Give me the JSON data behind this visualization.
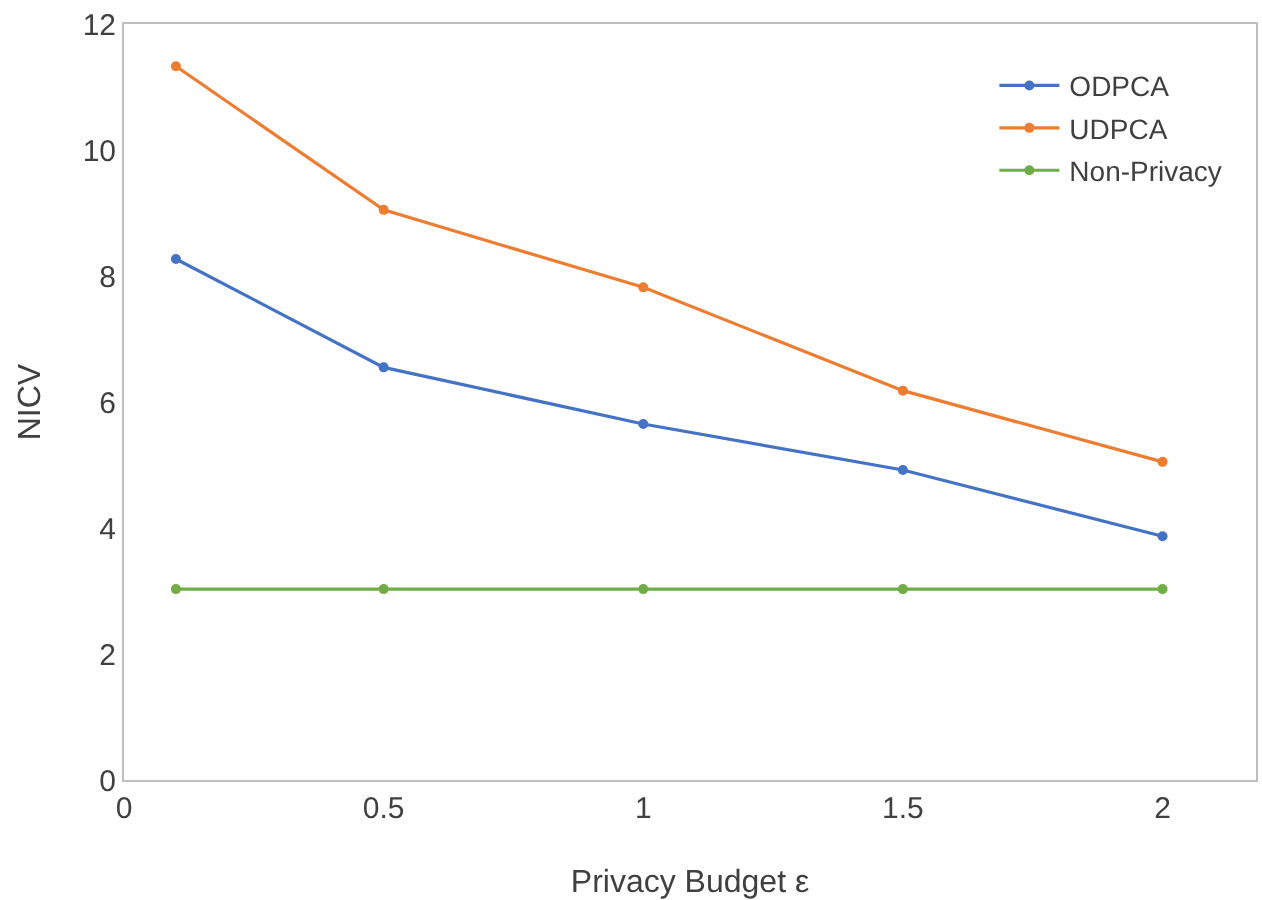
{
  "chart_data": {
    "type": "line",
    "xlabel": "Privacy Budget ε",
    "ylabel": "NICV",
    "x": [
      0.1,
      0.5,
      1,
      1.5,
      2
    ],
    "series": [
      {
        "name": "ODPCA",
        "color": "#4472c4",
        "values": [
          8.27,
          6.55,
          5.65,
          4.92,
          3.87
        ]
      },
      {
        "name": "UDPCA",
        "color": "#ed7d31",
        "values": [
          11.33,
          9.05,
          7.82,
          6.18,
          5.05
        ]
      },
      {
        "name": "Non-Privacy",
        "color": "#70ad47",
        "values": [
          3.03,
          3.03,
          3.03,
          3.03,
          3.03
        ]
      }
    ],
    "xlim": [
      0,
      2.18
    ],
    "xticks": [
      0,
      0.5,
      1,
      1.5,
      2
    ],
    "ylim": [
      0,
      12
    ],
    "yticks": [
      0,
      2,
      4,
      6,
      8,
      10,
      12
    ],
    "grid": false,
    "legend": "top right",
    "marker": "circle",
    "line_style": "solid"
  }
}
